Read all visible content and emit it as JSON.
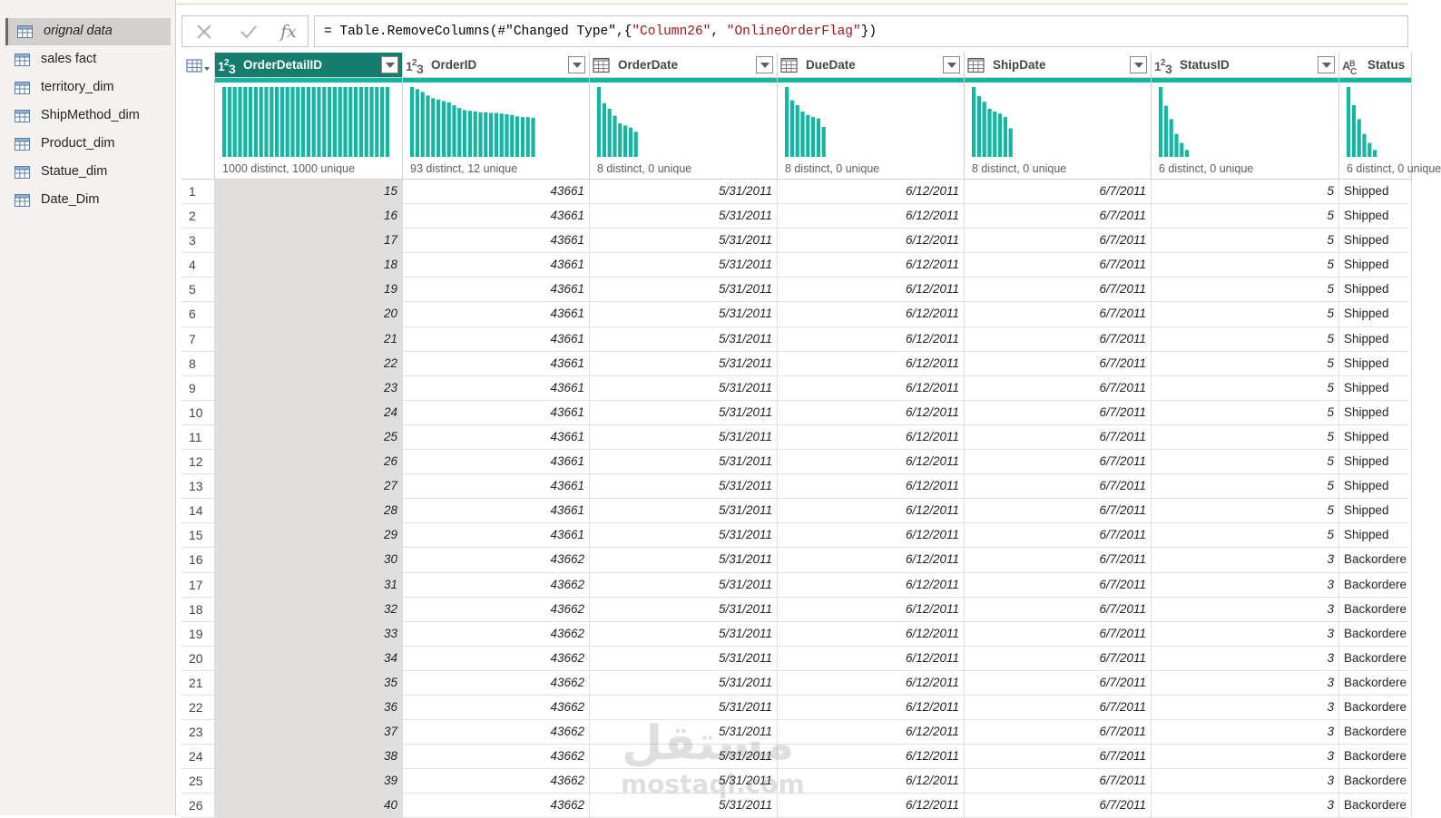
{
  "queries": [
    {
      "label": "orignal data",
      "active": true
    },
    {
      "label": "sales fact",
      "active": false
    },
    {
      "label": "territory_dim",
      "active": false
    },
    {
      "label": "ShipMethod_dim",
      "active": false
    },
    {
      "label": "Product_dim",
      "active": false
    },
    {
      "label": "Statue_dim",
      "active": false
    },
    {
      "label": "Date_Dim",
      "active": false
    }
  ],
  "formula_bar": {
    "cancel_icon": "close-icon",
    "commit_icon": "check-icon",
    "fx_label": "fx",
    "formula_prefix": "= Table.RemoveColumns(#\"Changed Type\",{",
    "formula_arg1": "\"Column26\"",
    "formula_sep": ", ",
    "formula_arg2": "\"OnlineOrderFlag\"",
    "formula_suffix": "})"
  },
  "columns": [
    {
      "name": "OrderDetailID",
      "type": "1²3",
      "type_icon": "whole-number-icon",
      "profile": "1000 distinct, 1000 unique",
      "selected": true,
      "bars": [
        1,
        1,
        1,
        1,
        1,
        1,
        1,
        1,
        1,
        1,
        1,
        1,
        1,
        1,
        1,
        1,
        1,
        1,
        1,
        1,
        1,
        1,
        1,
        1,
        1,
        1,
        1,
        1,
        1,
        1,
        1,
        1
      ]
    },
    {
      "name": "OrderID",
      "type": "1²3",
      "type_icon": "whole-number-icon",
      "profile": "93 distinct, 12 unique",
      "selected": false,
      "bars": [
        1,
        0.97,
        0.93,
        0.88,
        0.84,
        0.82,
        0.8,
        0.78,
        0.74,
        0.7,
        0.67,
        0.66,
        0.65,
        0.64,
        0.64,
        0.63,
        0.63,
        0.62,
        0.61,
        0.6,
        0.58,
        0.57,
        0.57,
        0.56
      ]
    },
    {
      "name": "OrderDate",
      "type": "cal",
      "type_icon": "date-icon",
      "profile": "8 distinct, 0 unique",
      "selected": false,
      "bars": [
        1,
        0.77,
        0.69,
        0.59,
        0.48,
        0.45,
        0.42,
        0.36
      ]
    },
    {
      "name": "DueDate",
      "type": "cal",
      "type_icon": "date-icon",
      "profile": "8 distinct, 0 unique",
      "selected": false,
      "bars": [
        1,
        0.81,
        0.74,
        0.65,
        0.6,
        0.57,
        0.55,
        0.43
      ]
    },
    {
      "name": "ShipDate",
      "type": "cal",
      "type_icon": "date-icon",
      "profile": "8 distinct, 0 unique",
      "selected": false,
      "bars": [
        1,
        0.87,
        0.79,
        0.69,
        0.65,
        0.62,
        0.57,
        0.41
      ]
    },
    {
      "name": "StatusID",
      "type": "1²3",
      "type_icon": "whole-number-icon",
      "profile": "6 distinct, 0 unique",
      "selected": false,
      "bars": [
        1,
        0.73,
        0.54,
        0.33,
        0.2,
        0.1
      ]
    },
    {
      "name": "Status",
      "type": "ABC",
      "type_icon": "text-icon",
      "profile": "6 distinct, 0 unique",
      "selected": false,
      "bars": [
        1,
        0.74,
        0.54,
        0.33,
        0.2,
        0.1
      ]
    }
  ],
  "rows": [
    [
      "15",
      "43661",
      "5/31/2011",
      "6/12/2011",
      "6/7/2011",
      "5",
      "Shipped"
    ],
    [
      "16",
      "43661",
      "5/31/2011",
      "6/12/2011",
      "6/7/2011",
      "5",
      "Shipped"
    ],
    [
      "17",
      "43661",
      "5/31/2011",
      "6/12/2011",
      "6/7/2011",
      "5",
      "Shipped"
    ],
    [
      "18",
      "43661",
      "5/31/2011",
      "6/12/2011",
      "6/7/2011",
      "5",
      "Shipped"
    ],
    [
      "19",
      "43661",
      "5/31/2011",
      "6/12/2011",
      "6/7/2011",
      "5",
      "Shipped"
    ],
    [
      "20",
      "43661",
      "5/31/2011",
      "6/12/2011",
      "6/7/2011",
      "5",
      "Shipped"
    ],
    [
      "21",
      "43661",
      "5/31/2011",
      "6/12/2011",
      "6/7/2011",
      "5",
      "Shipped"
    ],
    [
      "22",
      "43661",
      "5/31/2011",
      "6/12/2011",
      "6/7/2011",
      "5",
      "Shipped"
    ],
    [
      "23",
      "43661",
      "5/31/2011",
      "6/12/2011",
      "6/7/2011",
      "5",
      "Shipped"
    ],
    [
      "24",
      "43661",
      "5/31/2011",
      "6/12/2011",
      "6/7/2011",
      "5",
      "Shipped"
    ],
    [
      "25",
      "43661",
      "5/31/2011",
      "6/12/2011",
      "6/7/2011",
      "5",
      "Shipped"
    ],
    [
      "26",
      "43661",
      "5/31/2011",
      "6/12/2011",
      "6/7/2011",
      "5",
      "Shipped"
    ],
    [
      "27",
      "43661",
      "5/31/2011",
      "6/12/2011",
      "6/7/2011",
      "5",
      "Shipped"
    ],
    [
      "28",
      "43661",
      "5/31/2011",
      "6/12/2011",
      "6/7/2011",
      "5",
      "Shipped"
    ],
    [
      "29",
      "43661",
      "5/31/2011",
      "6/12/2011",
      "6/7/2011",
      "5",
      "Shipped"
    ],
    [
      "30",
      "43662",
      "5/31/2011",
      "6/12/2011",
      "6/7/2011",
      "3",
      "Backordere"
    ],
    [
      "31",
      "43662",
      "5/31/2011",
      "6/12/2011",
      "6/7/2011",
      "3",
      "Backordere"
    ],
    [
      "32",
      "43662",
      "5/31/2011",
      "6/12/2011",
      "6/7/2011",
      "3",
      "Backordere"
    ],
    [
      "33",
      "43662",
      "5/31/2011",
      "6/12/2011",
      "6/7/2011",
      "3",
      "Backordere"
    ],
    [
      "34",
      "43662",
      "5/31/2011",
      "6/12/2011",
      "6/7/2011",
      "3",
      "Backordere"
    ],
    [
      "35",
      "43662",
      "5/31/2011",
      "6/12/2011",
      "6/7/2011",
      "3",
      "Backordere"
    ],
    [
      "36",
      "43662",
      "5/31/2011",
      "6/12/2011",
      "6/7/2011",
      "3",
      "Backordere"
    ],
    [
      "37",
      "43662",
      "5/31/2011",
      "6/12/2011",
      "6/7/2011",
      "3",
      "Backordere"
    ],
    [
      "38",
      "43662",
      "5/31/2011",
      "6/12/2011",
      "6/7/2011",
      "3",
      "Backordere"
    ],
    [
      "39",
      "43662",
      "5/31/2011",
      "6/12/2011",
      "6/7/2011",
      "3",
      "Backordere"
    ],
    [
      "40",
      "43662",
      "5/31/2011",
      "6/12/2011",
      "6/7/2011",
      "3",
      "Backordere"
    ]
  ],
  "watermark": {
    "arabic": "مستقل",
    "latin": "mostaql.com"
  },
  "colors": {
    "accent": "#13b5a3",
    "selected_header": "#157d6d",
    "pane_bg": "#f3f2f1"
  }
}
